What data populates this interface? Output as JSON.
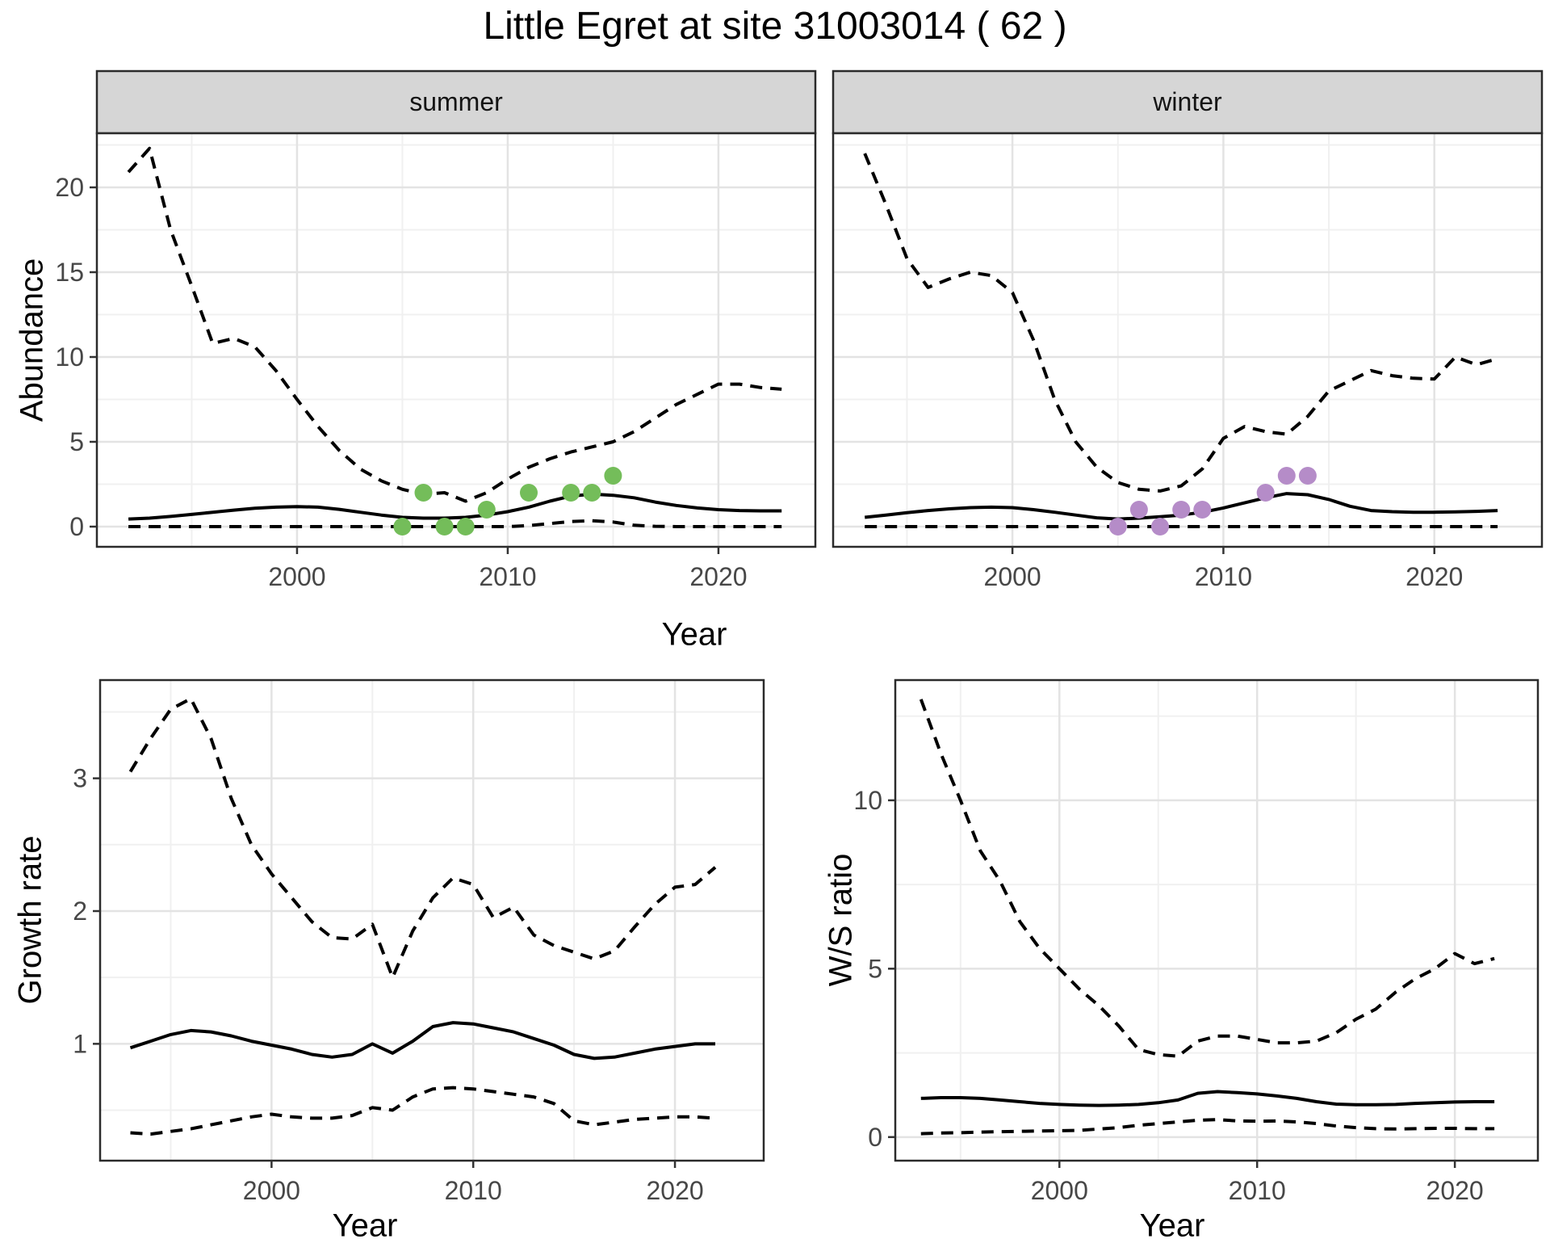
{
  "title": "Little Egret at site 31003014 ( 62 )",
  "colors": {
    "line": "#000000",
    "grid_major": "#e3e3e3",
    "grid_minor": "#f0f0f0",
    "panel_border": "#2b2b2b",
    "strip_fill": "#d6d6d6",
    "tick_mark": "#333333",
    "tick_text": "#474747",
    "summer_points": "#74bd5a",
    "winter_points": "#b58cc8"
  },
  "chart_data": [
    {
      "type": "line",
      "id": "abundance-summer",
      "facet_label": "summer",
      "xlabel": "Year",
      "ylabel": "Abundance",
      "x": {
        "range": [
          1990.5,
          2024.6
        ],
        "ticks": [
          2000,
          2010,
          2020
        ],
        "tick_labels": [
          "2000",
          "2010",
          "2020"
        ],
        "minor_ticks": [
          1995,
          2005,
          2015
        ]
      },
      "y": {
        "range": [
          -1.19,
          23.19
        ],
        "ticks": [
          0,
          5,
          10,
          15,
          20
        ],
        "tick_labels": [
          "0",
          "5",
          "10",
          "15",
          "20"
        ],
        "minor_ticks": [
          2.5,
          7.5,
          12.5,
          17.5,
          22.5
        ]
      },
      "series": [
        {
          "name": "upper_ci",
          "style": "dashed",
          "x": [
            1992,
            1993,
            1994,
            1995,
            1996,
            1997,
            1998,
            1999,
            2000,
            2001,
            2002,
            2003,
            2004,
            2005,
            2006,
            2007,
            2008,
            2009,
            2010,
            2011,
            2012,
            2013,
            2014,
            2015,
            2016,
            2017,
            2018,
            2019,
            2020,
            2021,
            2022,
            2023
          ],
          "values": [
            20.9,
            22.3,
            17.5,
            14.2,
            10.8,
            11.1,
            10.6,
            9.2,
            7.5,
            5.9,
            4.5,
            3.4,
            2.7,
            2.2,
            1.9,
            2.0,
            1.5,
            2.0,
            2.8,
            3.5,
            4.0,
            4.4,
            4.7,
            5.0,
            5.6,
            6.4,
            7.2,
            7.8,
            8.4,
            8.4,
            8.2,
            8.1
          ]
        },
        {
          "name": "mean",
          "style": "solid",
          "x": [
            1992,
            1993,
            1994,
            1995,
            1996,
            1997,
            1998,
            1999,
            2000,
            2001,
            2002,
            2003,
            2004,
            2005,
            2006,
            2007,
            2008,
            2009,
            2010,
            2011,
            2012,
            2013,
            2014,
            2015,
            2016,
            2017,
            2018,
            2019,
            2020,
            2021,
            2022,
            2023
          ],
          "values": [
            0.45,
            0.5,
            0.6,
            0.72,
            0.85,
            0.97,
            1.08,
            1.15,
            1.18,
            1.15,
            1.02,
            0.85,
            0.68,
            0.55,
            0.5,
            0.5,
            0.55,
            0.68,
            0.88,
            1.15,
            1.5,
            1.8,
            1.92,
            1.85,
            1.7,
            1.45,
            1.25,
            1.1,
            1.0,
            0.95,
            0.93,
            0.93
          ]
        },
        {
          "name": "lower_ci",
          "style": "dashed",
          "x": [
            1992,
            1993,
            1994,
            1995,
            1996,
            1997,
            1998,
            1999,
            2000,
            2001,
            2002,
            2003,
            2004,
            2005,
            2006,
            2007,
            2008,
            2009,
            2010,
            2011,
            2012,
            2013,
            2014,
            2015,
            2016,
            2017,
            2018,
            2019,
            2020,
            2021,
            2022,
            2023
          ],
          "values": [
            0,
            0,
            0,
            0,
            0,
            0,
            0,
            0,
            0,
            0,
            0,
            0,
            0,
            0,
            0,
            0,
            0,
            0,
            0,
            0.06,
            0.18,
            0.3,
            0.35,
            0.27,
            0.08,
            0.02,
            0,
            0,
            0,
            0,
            0,
            0
          ]
        }
      ],
      "points": {
        "name": "observations",
        "color": "#74bd5a",
        "x": [
          2005,
          2006,
          2007,
          2008,
          2009,
          2011,
          2013,
          2014,
          2015
        ],
        "values": [
          0,
          2,
          0,
          0,
          1,
          2,
          2,
          2,
          3
        ]
      }
    },
    {
      "type": "line",
      "id": "abundance-winter",
      "facet_label": "winter",
      "xlabel": "Year",
      "ylabel": "Abundance",
      "x": {
        "range": [
          1991.5,
          2025.1
        ],
        "ticks": [
          2000,
          2010,
          2020
        ],
        "tick_labels": [
          "2000",
          "2010",
          "2020"
        ],
        "minor_ticks": [
          1995,
          2005,
          2015
        ]
      },
      "y": {
        "range": [
          -1.19,
          23.19
        ],
        "ticks": [
          0,
          5,
          10,
          15,
          20
        ],
        "tick_labels": [],
        "minor_ticks": [
          2.5,
          7.5,
          12.5,
          17.5,
          22.5
        ]
      },
      "series": [
        {
          "name": "upper_ci",
          "style": "dashed",
          "x": [
            1993,
            1994,
            1995,
            1996,
            1997,
            1998,
            1999,
            2000,
            2001,
            2002,
            2003,
            2004,
            2005,
            2006,
            2007,
            2008,
            2009,
            2010,
            2011,
            2012,
            2013,
            2014,
            2015,
            2016,
            2017,
            2018,
            2019,
            2020,
            2021,
            2022,
            2023
          ],
          "values": [
            22.0,
            19.0,
            15.8,
            14.1,
            14.6,
            15.0,
            14.8,
            13.8,
            11.0,
            7.5,
            5.0,
            3.5,
            2.6,
            2.2,
            2.1,
            2.4,
            3.4,
            5.2,
            5.9,
            5.6,
            5.45,
            6.5,
            8.0,
            8.6,
            9.2,
            8.9,
            8.75,
            8.7,
            10.0,
            9.55,
            9.9
          ]
        },
        {
          "name": "mean",
          "style": "solid",
          "x": [
            1993,
            1994,
            1995,
            1996,
            1997,
            1998,
            1999,
            2000,
            2001,
            2002,
            2003,
            2004,
            2005,
            2006,
            2007,
            2008,
            2009,
            2010,
            2011,
            2012,
            2013,
            2014,
            2015,
            2016,
            2017,
            2018,
            2019,
            2020,
            2021,
            2022,
            2023
          ],
          "values": [
            0.55,
            0.68,
            0.82,
            0.95,
            1.05,
            1.12,
            1.15,
            1.12,
            1.0,
            0.85,
            0.68,
            0.52,
            0.45,
            0.5,
            0.58,
            0.68,
            0.85,
            1.1,
            1.4,
            1.7,
            1.95,
            1.88,
            1.6,
            1.2,
            0.95,
            0.88,
            0.85,
            0.85,
            0.87,
            0.9,
            0.95
          ]
        },
        {
          "name": "lower_ci",
          "style": "dashed",
          "x": [
            1993,
            1994,
            1995,
            1996,
            1997,
            1998,
            1999,
            2000,
            2001,
            2002,
            2003,
            2004,
            2005,
            2006,
            2007,
            2008,
            2009,
            2010,
            2011,
            2012,
            2013,
            2014,
            2015,
            2016,
            2017,
            2018,
            2019,
            2020,
            2021,
            2022,
            2023
          ],
          "values": [
            0,
            0,
            0,
            0,
            0,
            0,
            0,
            0,
            0,
            0,
            0,
            0,
            0,
            0,
            0,
            0,
            0,
            0,
            0,
            0,
            0,
            0,
            0,
            0,
            0,
            0,
            0,
            0,
            0,
            0,
            0
          ]
        }
      ],
      "points": {
        "name": "observations",
        "color": "#b58cc8",
        "x": [
          2005,
          2006,
          2007,
          2008,
          2009,
          2012,
          2013,
          2014
        ],
        "values": [
          0,
          1,
          0,
          1,
          1,
          2,
          3,
          3
        ]
      }
    },
    {
      "type": "line",
      "id": "growth-rate",
      "facet_label": "",
      "xlabel": "Year",
      "ylabel": "Growth rate",
      "x": {
        "range": [
          1991.5,
          2024.4
        ],
        "ticks": [
          2000,
          2010,
          2020
        ],
        "tick_labels": [
          "2000",
          "2010",
          "2020"
        ],
        "minor_ticks": [
          1995,
          2005,
          2015
        ]
      },
      "y": {
        "range": [
          0.12,
          3.74
        ],
        "ticks": [
          1,
          2,
          3
        ],
        "tick_labels": [
          "1",
          "2",
          "3"
        ],
        "minor_ticks": [
          0.5,
          1.5,
          2.5,
          3.5
        ]
      },
      "series": [
        {
          "name": "upper_ci",
          "style": "dashed",
          "x": [
            1993,
            1994,
            1995,
            1996,
            1997,
            1998,
            1999,
            2000,
            2001,
            2002,
            2003,
            2004,
            2005,
            2006,
            2007,
            2008,
            2009,
            2010,
            2011,
            2012,
            2013,
            2014,
            2015,
            2016,
            2017,
            2018,
            2019,
            2020,
            2021,
            2022
          ],
          "values": [
            3.05,
            3.3,
            3.52,
            3.6,
            3.3,
            2.85,
            2.5,
            2.28,
            2.1,
            1.92,
            1.8,
            1.79,
            1.9,
            1.5,
            1.85,
            2.1,
            2.25,
            2.2,
            1.95,
            2.03,
            1.82,
            1.74,
            1.69,
            1.64,
            1.7,
            1.88,
            2.05,
            2.18,
            2.2,
            2.33
          ]
        },
        {
          "name": "mean",
          "style": "solid",
          "x": [
            1993,
            1994,
            1995,
            1996,
            1997,
            1998,
            1999,
            2000,
            2001,
            2002,
            2003,
            2004,
            2005,
            2006,
            2007,
            2008,
            2009,
            2010,
            2011,
            2012,
            2013,
            2014,
            2015,
            2016,
            2017,
            2018,
            2019,
            2020,
            2021,
            2022
          ],
          "values": [
            0.97,
            1.02,
            1.07,
            1.1,
            1.09,
            1.06,
            1.02,
            0.99,
            0.96,
            0.92,
            0.9,
            0.92,
            1.0,
            0.93,
            1.02,
            1.13,
            1.16,
            1.15,
            1.12,
            1.09,
            1.04,
            0.99,
            0.92,
            0.89,
            0.9,
            0.93,
            0.96,
            0.98,
            1.0,
            1.0
          ]
        },
        {
          "name": "lower_ci",
          "style": "dashed",
          "x": [
            1993,
            1994,
            1995,
            1996,
            1997,
            1998,
            1999,
            2000,
            2001,
            2002,
            2003,
            2004,
            2005,
            2006,
            2007,
            2008,
            2009,
            2010,
            2011,
            2012,
            2013,
            2014,
            2015,
            2016,
            2017,
            2018,
            2019,
            2020,
            2021,
            2022
          ],
          "values": [
            0.33,
            0.32,
            0.34,
            0.36,
            0.39,
            0.42,
            0.45,
            0.47,
            0.45,
            0.44,
            0.44,
            0.46,
            0.52,
            0.5,
            0.6,
            0.66,
            0.67,
            0.66,
            0.64,
            0.62,
            0.6,
            0.55,
            0.42,
            0.39,
            0.41,
            0.43,
            0.44,
            0.45,
            0.45,
            0.44
          ]
        }
      ]
    },
    {
      "type": "line",
      "id": "ws-ratio",
      "facet_label": "",
      "xlabel": "Year",
      "ylabel": "W/S ratio",
      "x": {
        "range": [
          1991.7,
          2024.2
        ],
        "ticks": [
          2000,
          2010,
          2020
        ],
        "tick_labels": [
          "2000",
          "2010",
          "2020"
        ],
        "minor_ticks": [
          1995,
          2005,
          2015
        ]
      },
      "y": {
        "range": [
          -0.7,
          13.57
        ],
        "ticks": [
          0,
          5,
          10
        ],
        "tick_labels": [
          "0",
          "5",
          "10"
        ],
        "minor_ticks": [
          2.5,
          7.5,
          12.5
        ]
      },
      "series": [
        {
          "name": "upper_ci",
          "style": "dashed",
          "x": [
            1993,
            1994,
            1995,
            1996,
            1997,
            1998,
            1999,
            2000,
            2001,
            2002,
            2003,
            2004,
            2005,
            2006,
            2007,
            2008,
            2009,
            2010,
            2011,
            2012,
            2013,
            2014,
            2015,
            2016,
            2017,
            2018,
            2019,
            2020,
            2021,
            2022
          ],
          "values": [
            13.0,
            11.4,
            10.0,
            8.5,
            7.6,
            6.4,
            5.6,
            5.0,
            4.4,
            3.9,
            3.3,
            2.6,
            2.45,
            2.4,
            2.85,
            3.0,
            3.0,
            2.9,
            2.8,
            2.8,
            2.85,
            3.1,
            3.5,
            3.8,
            4.3,
            4.7,
            5.0,
            5.45,
            5.15,
            5.3
          ]
        },
        {
          "name": "mean",
          "style": "solid",
          "x": [
            1993,
            1994,
            1995,
            1996,
            1997,
            1998,
            1999,
            2000,
            2001,
            2002,
            2003,
            2004,
            2005,
            2006,
            2007,
            2008,
            2009,
            2010,
            2011,
            2012,
            2013,
            2014,
            2015,
            2016,
            2017,
            2018,
            2019,
            2020,
            2021,
            2022
          ],
          "values": [
            1.15,
            1.17,
            1.17,
            1.15,
            1.1,
            1.05,
            1.0,
            0.97,
            0.95,
            0.94,
            0.95,
            0.97,
            1.02,
            1.1,
            1.3,
            1.35,
            1.32,
            1.28,
            1.22,
            1.15,
            1.05,
            0.98,
            0.96,
            0.96,
            0.97,
            1.0,
            1.02,
            1.04,
            1.05,
            1.05
          ]
        },
        {
          "name": "lower_ci",
          "style": "dashed",
          "x": [
            1993,
            1994,
            1995,
            1996,
            1997,
            1998,
            1999,
            2000,
            2001,
            2002,
            2003,
            2004,
            2005,
            2006,
            2007,
            2008,
            2009,
            2010,
            2011,
            2012,
            2013,
            2014,
            2015,
            2016,
            2017,
            2018,
            2019,
            2020,
            2021,
            2022
          ],
          "values": [
            0.1,
            0.12,
            0.13,
            0.15,
            0.16,
            0.17,
            0.18,
            0.19,
            0.2,
            0.24,
            0.28,
            0.35,
            0.4,
            0.45,
            0.5,
            0.52,
            0.48,
            0.47,
            0.48,
            0.45,
            0.4,
            0.33,
            0.28,
            0.25,
            0.24,
            0.25,
            0.26,
            0.26,
            0.25,
            0.25
          ]
        }
      ]
    }
  ]
}
